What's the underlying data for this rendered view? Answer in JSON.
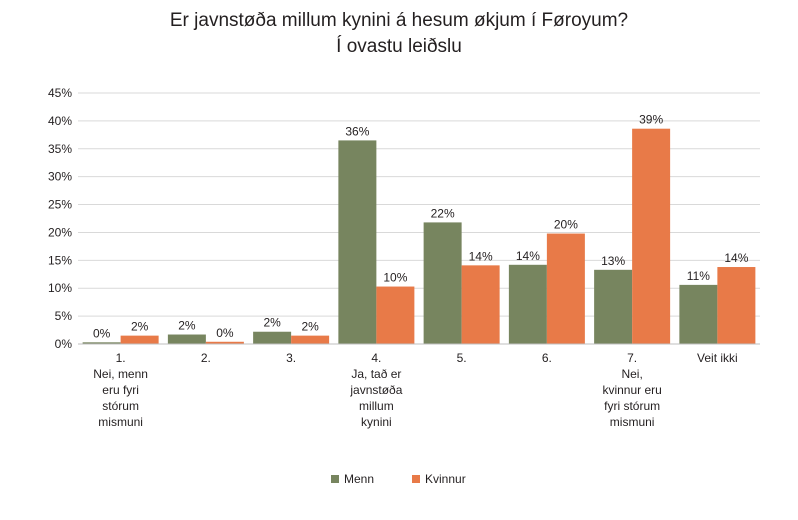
{
  "chart_data": {
    "type": "bar",
    "title": [
      "Er javnstøða millum kynini á hesum økjum í Føroyum?",
      "Í ovastu leiðslu"
    ],
    "xlabel": "",
    "ylabel": "",
    "ylim": [
      0,
      45
    ],
    "yticks": [
      "0%",
      "5%",
      "10%",
      "15%",
      "20%",
      "25%",
      "30%",
      "35%",
      "40%",
      "45%"
    ],
    "grid": true,
    "legend_position": "bottom",
    "categories": [
      [
        "1.",
        "Nei, menn",
        "eru fyri",
        "stórum",
        "mismuni"
      ],
      [
        "2."
      ],
      [
        "3."
      ],
      [
        "4.",
        "Ja, tað er",
        "javnstøða",
        "millum",
        "kynini"
      ],
      [
        "5."
      ],
      [
        "6."
      ],
      [
        "7.",
        "Nei,",
        "kvinnur eru",
        "fyri stórum",
        "mismuni"
      ],
      [
        "Veit ikki"
      ]
    ],
    "series": [
      {
        "name": "Menn",
        "color": "#77855f",
        "values": [
          0.3,
          1.7,
          2.2,
          36.5,
          21.8,
          14.2,
          13.3,
          10.6
        ],
        "labels": [
          "0%",
          "2%",
          "2%",
          "36%",
          "22%",
          "14%",
          "13%",
          "11%"
        ]
      },
      {
        "name": "Kvinnur",
        "color": "#e87a48",
        "values": [
          1.5,
          0.4,
          1.5,
          10.3,
          14.1,
          19.8,
          38.6,
          13.8
        ],
        "labels": [
          "2%",
          "0%",
          "2%",
          "10%",
          "14%",
          "20%",
          "39%",
          "14%"
        ]
      }
    ]
  }
}
